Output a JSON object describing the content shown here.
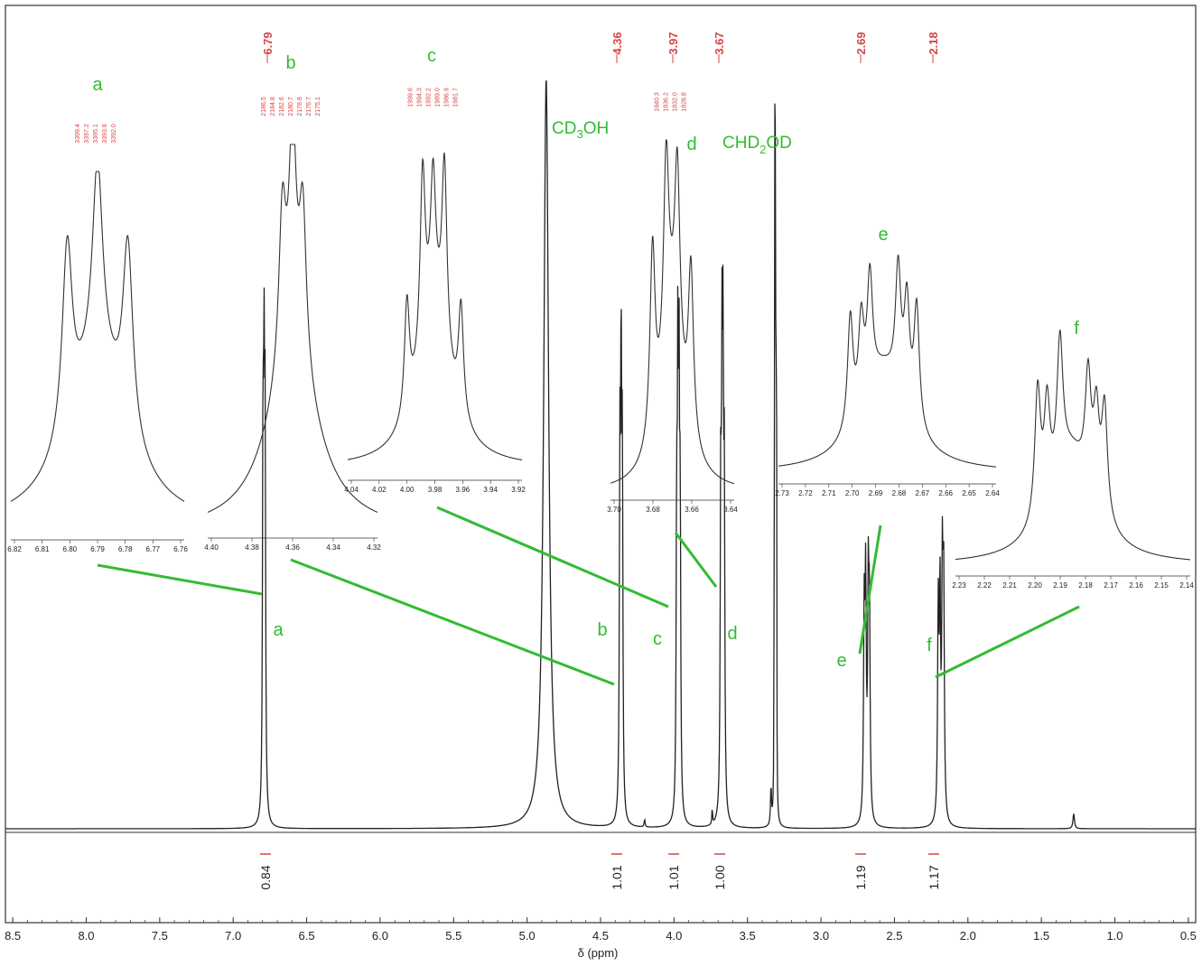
{
  "colors": {
    "spectrum": "#222222",
    "annotation": "#33bb33",
    "shift_label": "#d64545",
    "frame": "#333333"
  },
  "chart_data": {
    "type": "line",
    "xlabel": "δ (ppm)",
    "x_reversed": true,
    "xlim": [
      8.55,
      0.45
    ],
    "x_ticks": [
      "8.5",
      "8.0",
      "7.5",
      "7.0",
      "6.5",
      "6.0",
      "5.5",
      "5.0",
      "4.5",
      "4.0",
      "3.5",
      "3.0",
      "2.5",
      "2.0",
      "1.5",
      "1.0",
      "0.5"
    ],
    "baseline": 0.0,
    "peaks": [
      {
        "label": "a",
        "center": 6.79,
        "height": 0.77,
        "pattern": "triplet",
        "integral": "0.84",
        "shift_label": "6.79"
      },
      {
        "label": "b",
        "center": 4.36,
        "height": 0.82,
        "pattern": "triplet",
        "integral": "1.01",
        "shift_label": "4.36"
      },
      {
        "label": "c",
        "center": 3.97,
        "height": 0.74,
        "pattern": "doublet of doublets",
        "integral": "1.01",
        "shift_label": "3.97"
      },
      {
        "label": "d",
        "center": 3.67,
        "height": 0.76,
        "pattern": "doublet of doublets",
        "integral": "1.00",
        "shift_label": "3.67"
      },
      {
        "label": "e",
        "center": 2.69,
        "height": 0.48,
        "pattern": "multiplet",
        "integral": "1.19",
        "shift_label": "2.69"
      },
      {
        "label": "f",
        "center": 2.18,
        "height": 0.5,
        "pattern": "multiplet",
        "integral": "1.17",
        "shift_label": "2.18"
      },
      {
        "label": "CD3OH",
        "center": 4.87,
        "height": 1.0,
        "pattern": "singlet (solvent)"
      },
      {
        "label": "CHD2OD",
        "center": 3.31,
        "height": 0.9,
        "pattern": "quintet (solvent)"
      }
    ],
    "insets": [
      {
        "label": "a",
        "x_ticks": [
          "6.82",
          "6.81",
          "6.80",
          "6.79",
          "6.78",
          "6.77",
          "6.76"
        ],
        "peak_freqs": [
          "3399.4",
          "3397.2",
          "3395.1",
          "3393.8",
          "3392.0"
        ]
      },
      {
        "label": "b",
        "x_ticks": [
          "4.40",
          "4.38",
          "4.36",
          "4.34",
          "4.32"
        ],
        "peak_freqs": [
          "2186.5",
          "2184.8",
          "2182.6",
          "2180.7",
          "2178.8",
          "2176.7",
          "2175.1"
        ]
      },
      {
        "label": "c",
        "x_ticks": [
          "4.04",
          "4.02",
          "4.00",
          "3.98",
          "3.96",
          "3.94",
          "3.92"
        ],
        "peak_freqs": [
          "1999.6",
          "1994.3",
          "1992.2",
          "1989.0",
          "1986.9",
          "1981.7"
        ]
      },
      {
        "label": "d",
        "x_ticks": [
          "3.70",
          "3.68",
          "3.66",
          "3.64"
        ],
        "peak_freqs": [
          "1840.3",
          "1836.2",
          "1832.0",
          "1828.8"
        ]
      },
      {
        "label": "e",
        "x_ticks": [
          "2.73",
          "2.72",
          "2.71",
          "2.70",
          "2.69",
          "2.68",
          "2.67",
          "2.66",
          "2.65",
          "2.64"
        ],
        "peak_freqs": []
      },
      {
        "label": "f",
        "x_ticks": [
          "2.23",
          "2.22",
          "2.21",
          "2.20",
          "2.19",
          "2.18",
          "2.17",
          "2.16",
          "2.15",
          "2.14"
        ],
        "peak_freqs": []
      }
    ]
  },
  "labels": {
    "solvent_cd3oh_main": "CD",
    "solvent_cd3oh_sub": "3",
    "solvent_cd3oh_tail": "OH",
    "solvent_chd2od_main": "CHD",
    "solvent_chd2od_sub": "2",
    "solvent_chd2od_tail": "OD"
  }
}
